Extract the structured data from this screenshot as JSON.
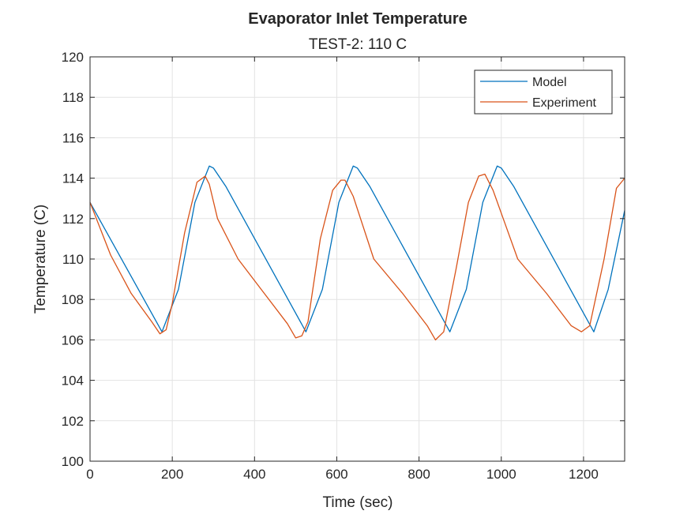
{
  "chart_data": {
    "type": "line",
    "title": "Evaporator Inlet Temperature",
    "subtitle": "TEST-2: 110 C",
    "xlabel": "Time (sec)",
    "ylabel": "Temperature (C)",
    "xlim": [
      0,
      1300
    ],
    "ylim": [
      100,
      120
    ],
    "xticks": [
      0,
      200,
      400,
      600,
      800,
      1000,
      1200
    ],
    "yticks": [
      100,
      102,
      104,
      106,
      108,
      110,
      112,
      114,
      116,
      118,
      120
    ],
    "grid": true,
    "legend_position": "top-right",
    "series": [
      {
        "name": "Model",
        "color": "#0072BD",
        "x": [
          0,
          175,
          215,
          255,
          290,
          300,
          330,
          525,
          565,
          605,
          640,
          650,
          680,
          875,
          915,
          955,
          990,
          1000,
          1030,
          1225,
          1260,
          1300
        ],
        "y": [
          112.8,
          106.4,
          108.5,
          112.8,
          114.6,
          114.5,
          113.6,
          106.4,
          108.5,
          112.8,
          114.6,
          114.5,
          113.6,
          106.4,
          108.5,
          112.8,
          114.6,
          114.5,
          113.6,
          106.4,
          108.5,
          112.4
        ]
      },
      {
        "name": "Experiment",
        "color": "#D95319",
        "x": [
          0,
          50,
          100,
          150,
          170,
          185,
          200,
          230,
          260,
          280,
          290,
          310,
          360,
          420,
          480,
          500,
          515,
          530,
          560,
          590,
          610,
          620,
          640,
          690,
          760,
          820,
          840,
          860,
          890,
          920,
          945,
          960,
          980,
          1040,
          1110,
          1170,
          1195,
          1215,
          1250,
          1280,
          1300
        ],
        "y": [
          112.8,
          110.2,
          108.3,
          106.9,
          106.3,
          106.5,
          107.8,
          111.3,
          113.8,
          114.1,
          113.7,
          112.0,
          110.0,
          108.4,
          106.8,
          106.1,
          106.2,
          106.9,
          111.0,
          113.4,
          113.9,
          113.9,
          113.1,
          110.0,
          108.3,
          106.7,
          106.0,
          106.4,
          109.5,
          112.8,
          114.1,
          114.2,
          113.4,
          110.0,
          108.3,
          106.7,
          106.4,
          106.7,
          110.0,
          113.5,
          114.0
        ]
      }
    ]
  }
}
